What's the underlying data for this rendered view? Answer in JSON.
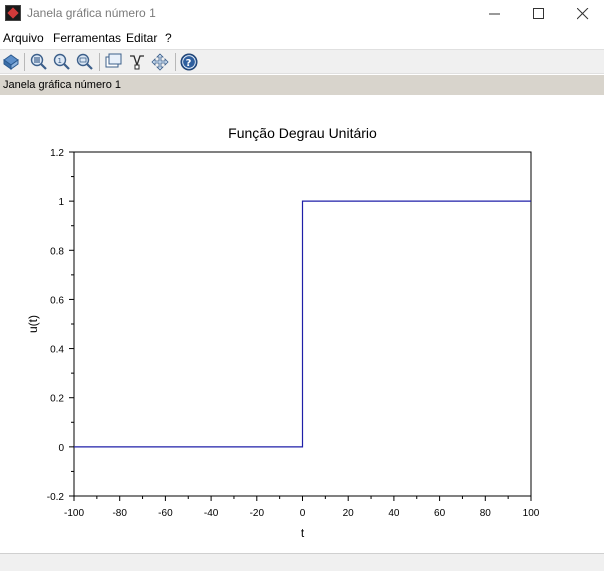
{
  "window": {
    "title": "Janela gráfica número 1",
    "controls": [
      "minimize-icon",
      "maximize-icon",
      "close-icon"
    ]
  },
  "menubar": {
    "items": [
      "Arquivo",
      "Ferramentas",
      "Editar",
      "?"
    ]
  },
  "toolbar": {
    "icons": [
      "rotate-icon",
      "zoom-in-icon",
      "zoom-reset-icon",
      "zoom-out-icon",
      "datatip-icon",
      "datatip-edit-icon",
      "pan-icon",
      "help-icon"
    ]
  },
  "infobar": {
    "text": "Janela gráfica número 1"
  },
  "colors": {
    "series": "#1f1fa8",
    "infobar_bg": "#d8d4cc"
  },
  "chart_data": {
    "type": "line",
    "title": "Função Degrau Unitário",
    "xlabel": "t",
    "ylabel": "u(t)",
    "xlim": [
      -100,
      100
    ],
    "ylim": [
      -0.2,
      1.2
    ],
    "xticks": [
      "-100",
      "-80",
      "-60",
      "-40",
      "-20",
      "0",
      "20",
      "40",
      "60",
      "80",
      "100"
    ],
    "yticks": [
      "-0.2",
      "0",
      "0.2",
      "0.4",
      "0.6",
      "0.8",
      "1",
      "1.2"
    ],
    "grid": false,
    "series": [
      {
        "x": [
          -100,
          0,
          0,
          100
        ],
        "y": [
          0,
          0,
          1,
          1
        ]
      }
    ]
  }
}
